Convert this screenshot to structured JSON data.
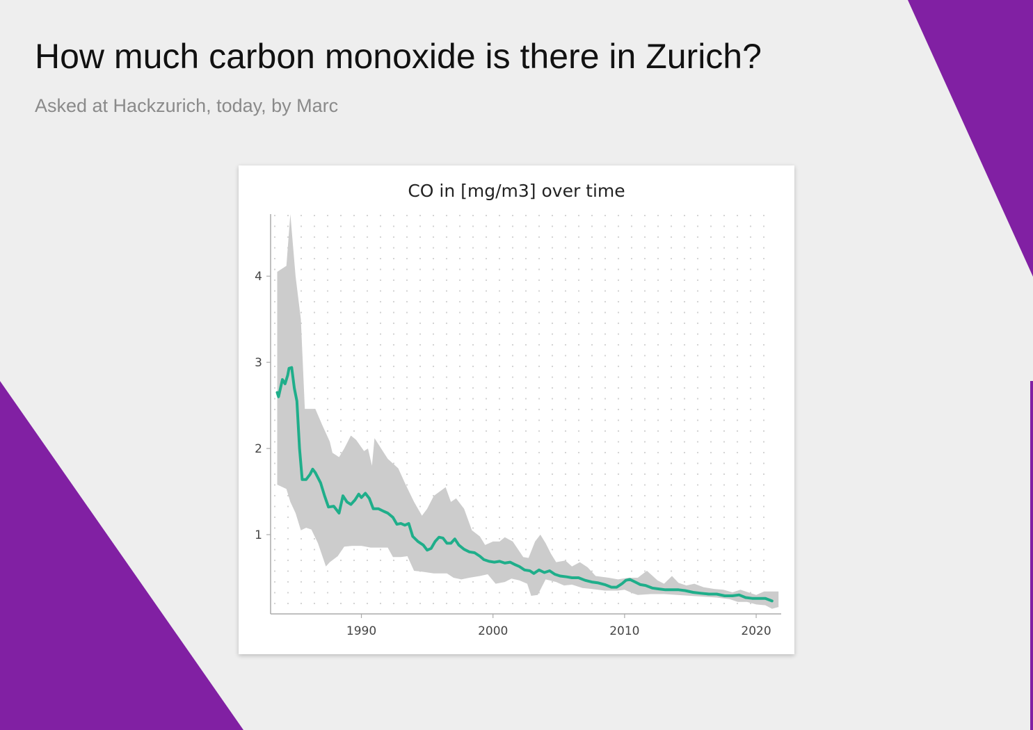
{
  "slide": {
    "title": "How much carbon monoxide is there in Zurich?",
    "subtitle": "Asked at Hackzurich, today, by Marc",
    "accent_color": "#8120a3",
    "background_color": "#eeeeee"
  },
  "chart_data": {
    "type": "line",
    "title": "CO in [mg/m3] over time",
    "xlabel": "",
    "ylabel": "",
    "xlim": [
      1983.1,
      2021.9
    ],
    "ylim": [
      0.08,
      4.72
    ],
    "x_ticks": [
      1990,
      2000,
      2010,
      2020
    ],
    "y_ticks": [
      1,
      2,
      3,
      4
    ],
    "grid": "dotted",
    "legend": "none",
    "series": [
      {
        "color": "#1fae8a",
        "points": [
          [
            1983.6,
            2.65
          ],
          [
            1983.7,
            2.6
          ],
          [
            1984.0,
            2.8
          ],
          [
            1984.2,
            2.75
          ],
          [
            1984.4,
            2.85
          ],
          [
            1984.5,
            2.93
          ],
          [
            1984.7,
            2.94
          ],
          [
            1984.9,
            2.7
          ],
          [
            1985.1,
            2.55
          ],
          [
            1985.3,
            2.0
          ],
          [
            1985.5,
            1.64
          ],
          [
            1985.8,
            1.64
          ],
          [
            1986.1,
            1.7
          ],
          [
            1986.3,
            1.76
          ],
          [
            1986.5,
            1.72
          ],
          [
            1986.9,
            1.6
          ],
          [
            1987.2,
            1.45
          ],
          [
            1987.5,
            1.32
          ],
          [
            1987.9,
            1.33
          ],
          [
            1988.3,
            1.25
          ],
          [
            1988.6,
            1.45
          ],
          [
            1988.9,
            1.38
          ],
          [
            1989.2,
            1.35
          ],
          [
            1989.5,
            1.4
          ],
          [
            1989.8,
            1.47
          ],
          [
            1990.0,
            1.43
          ],
          [
            1990.3,
            1.48
          ],
          [
            1990.6,
            1.42
          ],
          [
            1990.9,
            1.3
          ],
          [
            1991.3,
            1.3
          ],
          [
            1991.7,
            1.27
          ],
          [
            1992.0,
            1.25
          ],
          [
            1992.4,
            1.2
          ],
          [
            1992.7,
            1.12
          ],
          [
            1993.0,
            1.13
          ],
          [
            1993.3,
            1.11
          ],
          [
            1993.6,
            1.13
          ],
          [
            1993.9,
            0.98
          ],
          [
            1994.3,
            0.92
          ],
          [
            1994.7,
            0.88
          ],
          [
            1995.0,
            0.82
          ],
          [
            1995.3,
            0.84
          ],
          [
            1995.6,
            0.92
          ],
          [
            1995.9,
            0.97
          ],
          [
            1996.2,
            0.96
          ],
          [
            1996.5,
            0.9
          ],
          [
            1996.8,
            0.9
          ],
          [
            1997.1,
            0.95
          ],
          [
            1997.4,
            0.88
          ],
          [
            1997.8,
            0.83
          ],
          [
            1998.2,
            0.8
          ],
          [
            1998.6,
            0.79
          ],
          [
            1999.0,
            0.75
          ],
          [
            1999.3,
            0.71
          ],
          [
            1999.7,
            0.69
          ],
          [
            2000.1,
            0.68
          ],
          [
            2000.5,
            0.69
          ],
          [
            2000.9,
            0.67
          ],
          [
            2001.3,
            0.68
          ],
          [
            2001.7,
            0.65
          ],
          [
            2002.0,
            0.63
          ],
          [
            2002.4,
            0.59
          ],
          [
            2002.8,
            0.58
          ],
          [
            2003.1,
            0.55
          ],
          [
            2003.5,
            0.59
          ],
          [
            2003.9,
            0.56
          ],
          [
            2004.3,
            0.58
          ],
          [
            2004.7,
            0.54
          ],
          [
            2005.1,
            0.52
          ],
          [
            2005.6,
            0.51
          ],
          [
            2006.0,
            0.5
          ],
          [
            2006.5,
            0.5
          ],
          [
            2007.0,
            0.47
          ],
          [
            2007.5,
            0.45
          ],
          [
            2008.0,
            0.44
          ],
          [
            2008.5,
            0.42
          ],
          [
            2009.0,
            0.39
          ],
          [
            2009.4,
            0.39
          ],
          [
            2009.8,
            0.43
          ],
          [
            2010.1,
            0.47
          ],
          [
            2010.4,
            0.48
          ],
          [
            2010.8,
            0.45
          ],
          [
            2011.2,
            0.42
          ],
          [
            2011.6,
            0.41
          ],
          [
            2012.1,
            0.38
          ],
          [
            2012.6,
            0.37
          ],
          [
            2013.1,
            0.36
          ],
          [
            2013.6,
            0.36
          ],
          [
            2014.1,
            0.36
          ],
          [
            2014.6,
            0.35
          ],
          [
            2015.2,
            0.33
          ],
          [
            2015.8,
            0.32
          ],
          [
            2016.4,
            0.31
          ],
          [
            2017.0,
            0.31
          ],
          [
            2017.6,
            0.29
          ],
          [
            2018.2,
            0.29
          ],
          [
            2018.7,
            0.3
          ],
          [
            2019.2,
            0.27
          ],
          [
            2019.7,
            0.26
          ],
          [
            2020.2,
            0.26
          ],
          [
            2020.7,
            0.26
          ],
          [
            2021.2,
            0.23
          ]
        ]
      }
    ],
    "band": {
      "color": "#cccccc",
      "upper": [
        [
          1983.6,
          4.05
        ],
        [
          1984.3,
          4.12
        ],
        [
          1984.6,
          4.72
        ],
        [
          1985.0,
          4.0
        ],
        [
          1985.4,
          3.5
        ],
        [
          1985.7,
          2.46
        ],
        [
          1986.5,
          2.46
        ],
        [
          1987.0,
          2.28
        ],
        [
          1987.6,
          2.08
        ],
        [
          1987.8,
          1.95
        ],
        [
          1988.3,
          1.9
        ],
        [
          1988.7,
          2.0
        ],
        [
          1989.2,
          2.15
        ],
        [
          1989.6,
          2.1
        ],
        [
          1990.2,
          1.97
        ],
        [
          1990.5,
          2.0
        ],
        [
          1990.8,
          1.8
        ],
        [
          1991.0,
          2.12
        ],
        [
          1991.5,
          2.0
        ],
        [
          1992.0,
          1.88
        ],
        [
          1992.8,
          1.77
        ],
        [
          1993.3,
          1.6
        ],
        [
          1994.0,
          1.38
        ],
        [
          1994.6,
          1.22
        ],
        [
          1995.0,
          1.3
        ],
        [
          1995.5,
          1.45
        ],
        [
          1996.4,
          1.55
        ],
        [
          1996.8,
          1.38
        ],
        [
          1997.2,
          1.42
        ],
        [
          1997.8,
          1.3
        ],
        [
          1998.4,
          1.05
        ],
        [
          1999.0,
          0.98
        ],
        [
          1999.4,
          0.88
        ],
        [
          2000.0,
          0.92
        ],
        [
          2000.5,
          0.92
        ],
        [
          2000.9,
          0.97
        ],
        [
          2001.5,
          0.92
        ],
        [
          2002.3,
          0.74
        ],
        [
          2002.7,
          0.73
        ],
        [
          2003.2,
          0.92
        ],
        [
          2003.6,
          1.0
        ],
        [
          2004.0,
          0.9
        ],
        [
          2004.4,
          0.78
        ],
        [
          2004.8,
          0.68
        ],
        [
          2005.5,
          0.7
        ],
        [
          2006.0,
          0.63
        ],
        [
          2006.6,
          0.68
        ],
        [
          2007.2,
          0.62
        ],
        [
          2007.8,
          0.52
        ],
        [
          2008.8,
          0.5
        ],
        [
          2009.5,
          0.48
        ],
        [
          2010.3,
          0.5
        ],
        [
          2011.0,
          0.5
        ],
        [
          2011.7,
          0.58
        ],
        [
          2012.5,
          0.47
        ],
        [
          2013.0,
          0.43
        ],
        [
          2013.6,
          0.52
        ],
        [
          2014.1,
          0.44
        ],
        [
          2014.7,
          0.41
        ],
        [
          2015.3,
          0.43
        ],
        [
          2016.0,
          0.39
        ],
        [
          2016.8,
          0.37
        ],
        [
          2017.5,
          0.36
        ],
        [
          2018.2,
          0.33
        ],
        [
          2018.8,
          0.36
        ],
        [
          2019.4,
          0.33
        ],
        [
          2020.0,
          0.3
        ],
        [
          2020.6,
          0.34
        ],
        [
          2021.7,
          0.34
        ]
      ],
      "lower": [
        [
          2021.7,
          0.16
        ],
        [
          2021.2,
          0.14
        ],
        [
          2020.7,
          0.18
        ],
        [
          2020.0,
          0.19
        ],
        [
          2019.3,
          0.22
        ],
        [
          2018.6,
          0.22
        ],
        [
          2018.0,
          0.25
        ],
        [
          2017.0,
          0.27
        ],
        [
          2016.0,
          0.28
        ],
        [
          2015.0,
          0.29
        ],
        [
          2014.0,
          0.3
        ],
        [
          2013.0,
          0.31
        ],
        [
          2012.0,
          0.31
        ],
        [
          2011.0,
          0.3
        ],
        [
          2010.6,
          0.32
        ],
        [
          2010.0,
          0.36
        ],
        [
          2009.5,
          0.35
        ],
        [
          2008.5,
          0.35
        ],
        [
          2007.5,
          0.37
        ],
        [
          2006.8,
          0.38
        ],
        [
          2006.0,
          0.42
        ],
        [
          2005.4,
          0.41
        ],
        [
          2004.8,
          0.45
        ],
        [
          2004.0,
          0.48
        ],
        [
          2003.4,
          0.3
        ],
        [
          2002.9,
          0.29
        ],
        [
          2002.6,
          0.43
        ],
        [
          2002.0,
          0.47
        ],
        [
          2001.4,
          0.49
        ],
        [
          2000.9,
          0.45
        ],
        [
          2000.2,
          0.43
        ],
        [
          1999.6,
          0.54
        ],
        [
          1999.0,
          0.52
        ],
        [
          1998.2,
          0.5
        ],
        [
          1997.6,
          0.48
        ],
        [
          1997.0,
          0.5
        ],
        [
          1996.5,
          0.55
        ],
        [
          1995.5,
          0.55
        ],
        [
          1994.6,
          0.57
        ],
        [
          1994.0,
          0.58
        ],
        [
          1993.5,
          0.75
        ],
        [
          1993.0,
          0.74
        ],
        [
          1992.4,
          0.74
        ],
        [
          1992.0,
          0.85
        ],
        [
          1991.2,
          0.85
        ],
        [
          1990.7,
          0.85
        ],
        [
          1990.0,
          0.87
        ],
        [
          1989.3,
          0.87
        ],
        [
          1988.7,
          0.86
        ],
        [
          1988.2,
          0.75
        ],
        [
          1987.6,
          0.68
        ],
        [
          1987.3,
          0.63
        ],
        [
          1986.7,
          0.9
        ],
        [
          1986.2,
          1.06
        ],
        [
          1985.8,
          1.08
        ],
        [
          1985.4,
          1.05
        ],
        [
          1985.0,
          1.25
        ],
        [
          1984.6,
          1.38
        ],
        [
          1984.3,
          1.53
        ],
        [
          1983.6,
          1.58
        ]
      ]
    }
  }
}
